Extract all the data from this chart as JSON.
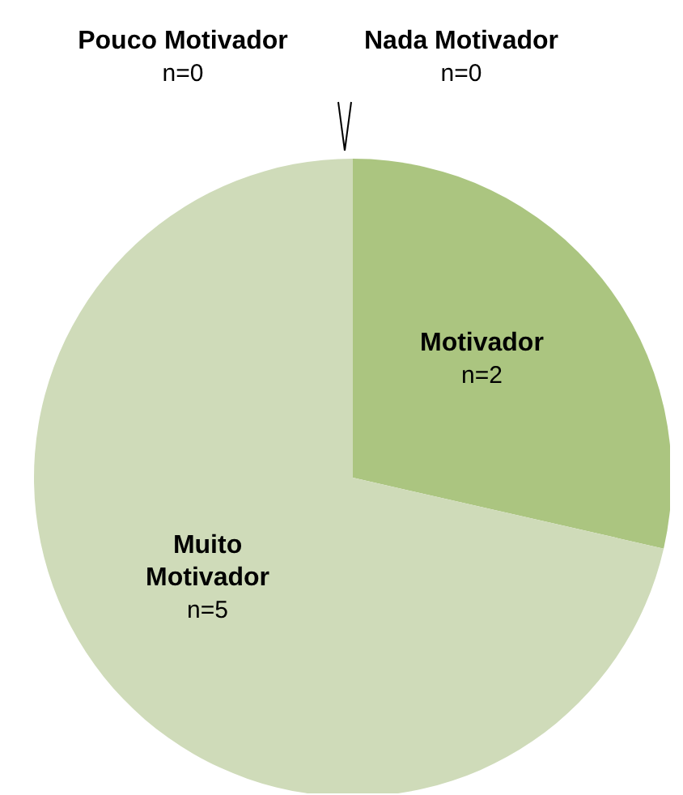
{
  "chart_data": {
    "type": "pie",
    "categories": [
      "Nada Motivador",
      "Motivador",
      "Muito Motivador",
      "Pouco Motivador"
    ],
    "values": [
      0,
      2,
      5,
      0
    ],
    "value_labels": [
      "n=0",
      "n=2",
      "n=5",
      "n=0"
    ],
    "colors": [
      "#7f9f52",
      "#abc580",
      "#cfdbb9",
      "#e3ead6"
    ]
  }
}
